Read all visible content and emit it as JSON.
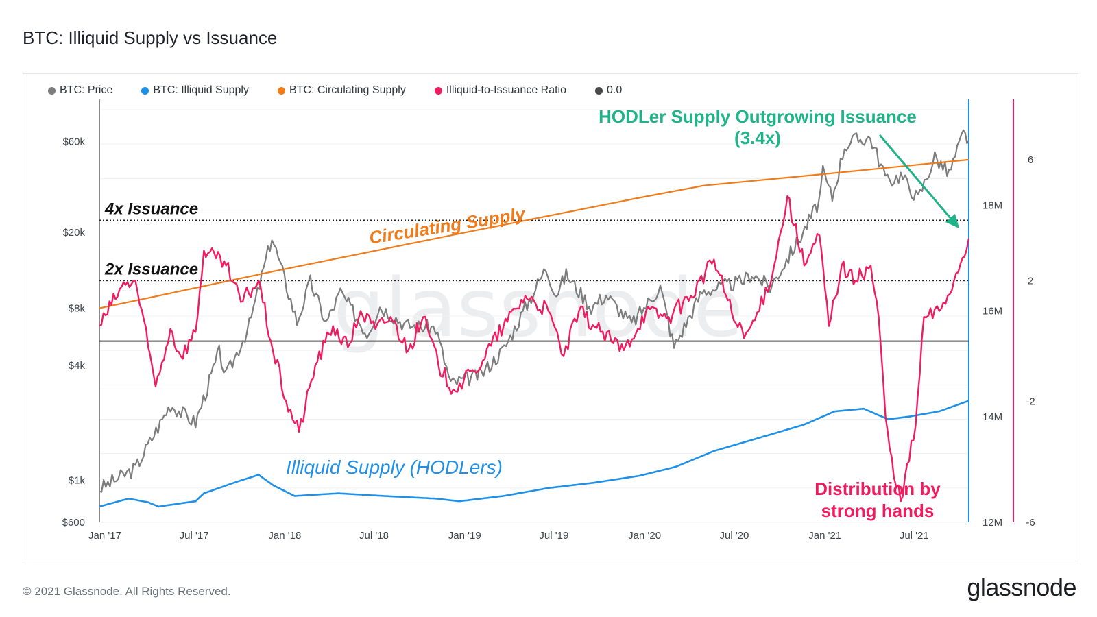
{
  "title": "BTC: Illiquid Supply vs Issuance",
  "footer": {
    "copyright": "© 2021 Glassnode. All Rights Reserved.",
    "brand": "glassnode",
    "watermark": "glassnode"
  },
  "colors": {
    "price": "#7d7d7d",
    "illiquid": "#1e90e8",
    "circulating": "#ef7b1a",
    "ratio": "#ef1d5f",
    "zero": "#4a4a4a",
    "hodler": "#1fb38a"
  },
  "chart_data": {
    "type": "line",
    "title": "BTC: Illiquid Supply vs Issuance",
    "legend_position": "top-left",
    "grid": true,
    "x_ticks": [
      "Jan '17",
      "Jul '17",
      "Jan '18",
      "Jul '18",
      "Jan '19",
      "Jul '19",
      "Jan '20",
      "Jul '20",
      "Jan '21",
      "Jul '21"
    ],
    "x_range": [
      "2017-01-01",
      "2021-10-31"
    ],
    "axes": {
      "price": {
        "scale": "log",
        "range": [
          600,
          100000
        ],
        "ticks": [
          "$600",
          "$1k",
          "$4k",
          "$8k",
          "$20k",
          "$60k"
        ],
        "tick_values": [
          600,
          1000,
          4000,
          8000,
          20000,
          60000
        ]
      },
      "supply": {
        "range": [
          12000000,
          20000000
        ],
        "ticks": [
          "12M",
          "14M",
          "16M",
          "18M"
        ],
        "tick_values": [
          12000000,
          14000000,
          16000000,
          18000000
        ]
      },
      "ratio": {
        "range": [
          -6,
          8
        ],
        "ticks": [
          "-6",
          "-2",
          "2",
          "6"
        ],
        "tick_values": [
          -6,
          -2,
          2,
          6
        ]
      }
    },
    "series": [
      {
        "name": "BTC: Price",
        "axis": "price",
        "points": [
          [
            "2017-01-01",
            900
          ],
          [
            "2017-03-15",
            1150
          ],
          [
            "2017-05-25",
            2500
          ],
          [
            "2017-07-15",
            2000
          ],
          [
            "2017-09-01",
            4700
          ],
          [
            "2017-09-15",
            3500
          ],
          [
            "2017-11-01",
            6500
          ],
          [
            "2017-12-17",
            19000
          ],
          [
            "2018-02-06",
            6800
          ],
          [
            "2018-03-05",
            11000
          ],
          [
            "2018-04-06",
            6700
          ],
          [
            "2018-05-05",
            9700
          ],
          [
            "2018-06-28",
            5900
          ],
          [
            "2018-07-24",
            8200
          ],
          [
            "2018-09-15",
            6500
          ],
          [
            "2018-11-14",
            6300
          ],
          [
            "2018-12-15",
            3200
          ],
          [
            "2019-02-15",
            3600
          ],
          [
            "2019-04-02",
            4900
          ],
          [
            "2019-06-26",
            13000
          ],
          [
            "2019-07-17",
            9500
          ],
          [
            "2019-08-06",
            12000
          ],
          [
            "2019-09-26",
            8100
          ],
          [
            "2019-10-26",
            9400
          ],
          [
            "2019-12-17",
            6600
          ],
          [
            "2020-02-13",
            10400
          ],
          [
            "2020-03-12",
            5000
          ],
          [
            "2020-05-08",
            9800
          ],
          [
            "2020-07-27",
            11000
          ],
          [
            "2020-08-17",
            12200
          ],
          [
            "2020-09-23",
            10300
          ],
          [
            "2020-11-24",
            19100
          ],
          [
            "2020-12-31",
            29000
          ],
          [
            "2021-01-08",
            41000
          ],
          [
            "2021-01-27",
            30500
          ],
          [
            "2021-02-21",
            57000
          ],
          [
            "2021-03-13",
            61000
          ],
          [
            "2021-04-14",
            63000
          ],
          [
            "2021-05-19",
            37000
          ],
          [
            "2021-06-15",
            40000
          ],
          [
            "2021-07-20",
            30000
          ],
          [
            "2021-08-23",
            50000
          ],
          [
            "2021-09-21",
            40600
          ],
          [
            "2021-10-20",
            66000
          ],
          [
            "2021-10-31",
            61000
          ]
        ]
      },
      {
        "name": "BTC: Illiquid Supply",
        "axis": "supply",
        "points": [
          [
            "2017-01-01",
            12300000
          ],
          [
            "2017-03-01",
            12450000
          ],
          [
            "2017-04-10",
            12380000
          ],
          [
            "2017-05-01",
            12300000
          ],
          [
            "2017-07-15",
            12400000
          ],
          [
            "2017-08-01",
            12550000
          ],
          [
            "2017-10-01",
            12750000
          ],
          [
            "2017-11-20",
            12900000
          ],
          [
            "2017-12-20",
            12700000
          ],
          [
            "2018-02-01",
            12500000
          ],
          [
            "2018-05-01",
            12550000
          ],
          [
            "2018-08-01",
            12500000
          ],
          [
            "2018-11-15",
            12450000
          ],
          [
            "2019-01-01",
            12400000
          ],
          [
            "2019-04-01",
            12500000
          ],
          [
            "2019-07-01",
            12650000
          ],
          [
            "2019-10-01",
            12750000
          ],
          [
            "2020-01-01",
            12880000
          ],
          [
            "2020-03-15",
            13050000
          ],
          [
            "2020-06-01",
            13350000
          ],
          [
            "2020-09-01",
            13600000
          ],
          [
            "2020-12-01",
            13850000
          ],
          [
            "2021-02-01",
            14100000
          ],
          [
            "2021-04-01",
            14150000
          ],
          [
            "2021-05-20",
            13950000
          ],
          [
            "2021-07-01",
            14000000
          ],
          [
            "2021-09-01",
            14100000
          ],
          [
            "2021-10-31",
            14300000
          ]
        ]
      },
      {
        "name": "BTC: Circulating Supply",
        "axis": "supply",
        "points": [
          [
            "2017-01-01",
            16050000
          ],
          [
            "2018-01-01",
            16770000
          ],
          [
            "2019-01-01",
            17460000
          ],
          [
            "2020-01-01",
            18140000
          ],
          [
            "2020-05-11",
            18370000
          ],
          [
            "2021-01-01",
            18580000
          ],
          [
            "2021-10-31",
            18860000
          ]
        ]
      },
      {
        "name": "Illiquid-to-Issuance Ratio",
        "axis": "ratio",
        "points": [
          [
            "2017-01-01",
            0.5
          ],
          [
            "2017-02-15",
            1.8
          ],
          [
            "2017-03-15",
            2.0
          ],
          [
            "2017-04-10",
            -0.2
          ],
          [
            "2017-04-25",
            -1.5
          ],
          [
            "2017-05-25",
            0.4
          ],
          [
            "2017-06-15",
            -0.5
          ],
          [
            "2017-07-15",
            0.3
          ],
          [
            "2017-08-01",
            3.0
          ],
          [
            "2017-09-15",
            2.5
          ],
          [
            "2017-10-15",
            1.3
          ],
          [
            "2017-11-20",
            2.0
          ],
          [
            "2017-12-15",
            0.0
          ],
          [
            "2018-01-15",
            -2.0
          ],
          [
            "2018-02-10",
            -3.0
          ],
          [
            "2018-03-15",
            -0.8
          ],
          [
            "2018-04-20",
            0.5
          ],
          [
            "2018-05-20",
            -0.2
          ],
          [
            "2018-06-15",
            1.0
          ],
          [
            "2018-07-15",
            0.4
          ],
          [
            "2018-08-15",
            0.8
          ],
          [
            "2018-09-20",
            -0.3
          ],
          [
            "2018-10-20",
            0.8
          ],
          [
            "2018-11-20",
            -0.8
          ],
          [
            "2018-12-20",
            -1.6
          ],
          [
            "2019-02-01",
            -1.0
          ],
          [
            "2019-04-01",
            0.5
          ],
          [
            "2019-05-15",
            1.5
          ],
          [
            "2019-07-01",
            1.0
          ],
          [
            "2019-08-01",
            -0.5
          ],
          [
            "2019-09-01",
            1.0
          ],
          [
            "2019-10-15",
            0.3
          ],
          [
            "2019-12-01",
            -0.3
          ],
          [
            "2020-01-15",
            1.0
          ],
          [
            "2020-03-01",
            0.8
          ],
          [
            "2020-04-15",
            1.5
          ],
          [
            "2020-06-01",
            2.7
          ],
          [
            "2020-07-15",
            0.6
          ],
          [
            "2020-08-01",
            0.1
          ],
          [
            "2020-09-01",
            1.0
          ],
          [
            "2020-10-01",
            2.5
          ],
          [
            "2020-10-28",
            4.8
          ],
          [
            "2020-12-01",
            2.5
          ],
          [
            "2021-01-01",
            3.5
          ],
          [
            "2021-01-20",
            0.5
          ],
          [
            "2021-02-15",
            2.5
          ],
          [
            "2021-03-15",
            2.0
          ],
          [
            "2021-04-15",
            2.5
          ],
          [
            "2021-05-01",
            0.8
          ],
          [
            "2021-05-15",
            -2.5
          ],
          [
            "2021-06-01",
            -4.5
          ],
          [
            "2021-06-15",
            -5.3
          ],
          [
            "2021-07-15",
            -2.8
          ],
          [
            "2021-08-01",
            0.8
          ],
          [
            "2021-09-01",
            1.0
          ],
          [
            "2021-10-01",
            2.0
          ],
          [
            "2021-10-31",
            3.4
          ]
        ]
      },
      {
        "name": "0.0",
        "axis": "ratio",
        "points": [
          [
            "2017-01-01",
            0
          ],
          [
            "2021-10-31",
            0
          ]
        ]
      }
    ],
    "reference_lines": [
      {
        "label": "4x Issuance",
        "axis": "ratio",
        "value": 4
      },
      {
        "label": "2x Issuance",
        "axis": "ratio",
        "value": 2
      }
    ],
    "annotations": [
      {
        "text": "HODLer Supply Outgrowing Issuance",
        "line2": "(3.4x)"
      },
      {
        "text": "Circulating Supply"
      },
      {
        "text": "Illiquid Supply (HODLers)"
      },
      {
        "text": "Distribution by",
        "line2": "strong hands"
      }
    ]
  }
}
